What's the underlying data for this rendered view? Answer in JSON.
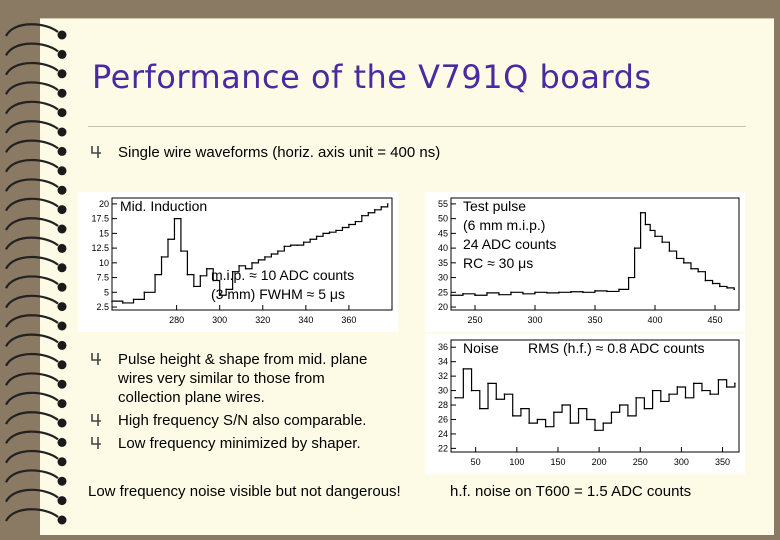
{
  "slide": {
    "title": "Performance of the V791Q boards",
    "bullet_top": "Single wire waveforms (horiz. axis unit = 400 ns)",
    "bullets": [
      "Pulse height & shape from mid. plane",
      "wires very similar to those from",
      "collection plane wires.",
      "High frequency S/N also comparable.",
      "Low frequency minimized by shaper."
    ],
    "footer_left": "Low frequency noise visible but not dangerous!",
    "footer_right": "h.f. noise on T600 = 1.5 ADC counts",
    "bullet_icon": "checkbox-4-icon",
    "binding_icon": "spiral-binding-icon"
  },
  "chart_data": [
    {
      "type": "line",
      "title": "Mid. Induction",
      "annotation": [
        "m.i.p. ≈ 10 ADC counts",
        "(3 mm) FWHM ≈ 5 μs"
      ],
      "xlim": [
        250,
        380
      ],
      "ylim": [
        2,
        21
      ],
      "xticks": [
        "280",
        "300",
        "320",
        "340",
        "360"
      ],
      "yticks": [
        "2.5",
        "5",
        "7.5",
        "10",
        "12.5",
        "15",
        "17.5",
        "20"
      ],
      "x": [
        250,
        255,
        260,
        265,
        270,
        273,
        276,
        279,
        282,
        285,
        288,
        291,
        294,
        297,
        300,
        303,
        306,
        309,
        312,
        315,
        318,
        321,
        324,
        327,
        330,
        333,
        336,
        339,
        342,
        345,
        348,
        351,
        354,
        357,
        360,
        363,
        366,
        369,
        372,
        375,
        378
      ],
      "y": [
        3.5,
        3.2,
        3.8,
        5,
        8,
        11,
        14,
        17.5,
        12,
        8,
        6,
        7.8,
        9,
        7,
        4.5,
        5.5,
        8.5,
        9.5,
        9,
        10,
        10.5,
        11,
        11.5,
        12,
        12.8,
        13,
        13,
        13.5,
        14,
        14.5,
        15,
        15.2,
        15.5,
        16,
        16.5,
        17,
        18,
        18.5,
        19,
        19.5,
        20
      ]
    },
    {
      "type": "line",
      "title": "Test pulse",
      "annotation": [
        "(6 mm m.i.p.)",
        "24 ADC counts",
        "RC ≈ 30 μs"
      ],
      "xlim": [
        230,
        470
      ],
      "ylim": [
        19,
        57
      ],
      "xticks": [
        "250",
        "300",
        "350",
        "400",
        "450"
      ],
      "yticks": [
        "20",
        "25",
        "30",
        "35",
        "40",
        "45",
        "50",
        "55"
      ],
      "x": [
        230,
        240,
        250,
        260,
        270,
        280,
        290,
        300,
        310,
        320,
        330,
        340,
        350,
        360,
        370,
        378,
        383,
        388,
        392,
        396,
        400,
        406,
        412,
        418,
        424,
        430,
        436,
        442,
        448,
        454,
        460,
        466
      ],
      "y": [
        24,
        24.5,
        24,
        24.8,
        24.2,
        25,
        24.5,
        25,
        24.8,
        25,
        25.2,
        25,
        25.5,
        25.3,
        26,
        30,
        40,
        52,
        48,
        46,
        44,
        42,
        39,
        36.5,
        35,
        33,
        32,
        29,
        28,
        27,
        26.5,
        26
      ]
    },
    {
      "type": "line",
      "title": "Noise",
      "annotation": [
        "RMS (h.f.) ≈ 0.8 ADC counts"
      ],
      "xlim": [
        20,
        370
      ],
      "ylim": [
        21.5,
        37
      ],
      "xticks": [
        "50",
        "100",
        "150",
        "200",
        "250",
        "300",
        "350"
      ],
      "yticks": [
        "22",
        "24",
        "26",
        "28",
        "30",
        "32",
        "34",
        "36"
      ],
      "x": [
        25,
        35,
        45,
        55,
        65,
        75,
        85,
        95,
        105,
        115,
        125,
        135,
        145,
        155,
        165,
        175,
        185,
        195,
        205,
        215,
        225,
        235,
        245,
        255,
        265,
        275,
        285,
        295,
        305,
        315,
        325,
        335,
        345,
        355,
        365
      ],
      "y": [
        29,
        33,
        30,
        27.5,
        31,
        28.8,
        29.5,
        26.5,
        27.5,
        25.5,
        26,
        25,
        27,
        28,
        25.5,
        27.5,
        26,
        24.5,
        25.5,
        27,
        28,
        26.5,
        29,
        27.5,
        30,
        28.5,
        29.5,
        30.5,
        29,
        31,
        30,
        29.5,
        31.5,
        30.5,
        31
      ]
    }
  ]
}
